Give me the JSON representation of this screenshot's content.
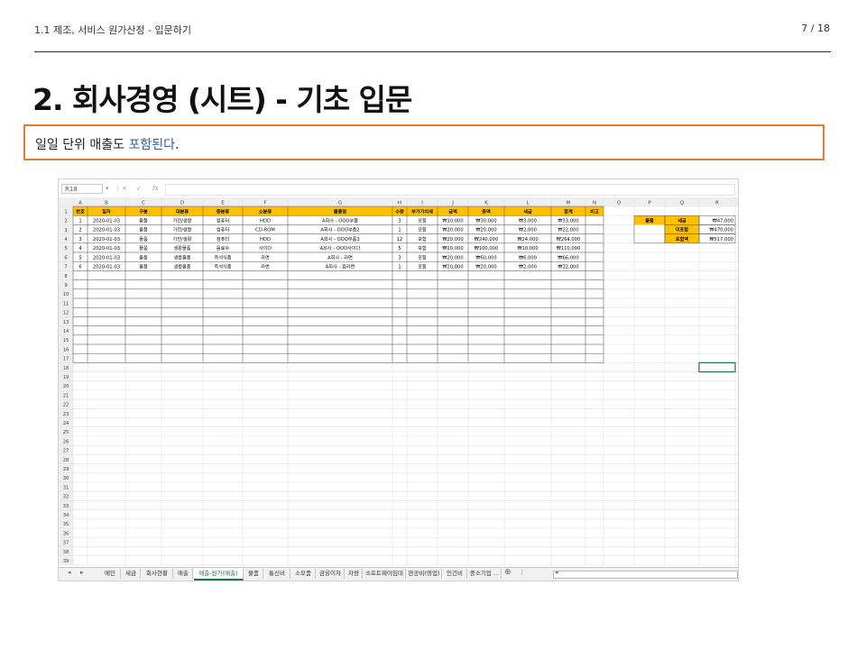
{
  "header": {
    "breadcrumb": "1.1 제조, 서비스 원가산정 - 입문하기",
    "page": "7 / 18"
  },
  "title": "2. 회사경영 (시트) - 기초 입문",
  "callout": {
    "text": "일일 단위 매출도 ",
    "highlight": "포함된다",
    "end": "."
  },
  "excel": {
    "name_box": "R18",
    "fx": "fx",
    "col_letters": [
      "A",
      "B",
      "C",
      "D",
      "E",
      "F",
      "G",
      "H",
      "I",
      "J",
      "K",
      "L",
      "M",
      "N",
      "O",
      "P",
      "Q",
      "R"
    ],
    "headers": [
      "번호",
      "일자",
      "구분",
      "대분류",
      "중분류",
      "소분류",
      "물품명",
      "수량",
      "부가가치세",
      "금액",
      "총액",
      "세금",
      "합계",
      "비고"
    ],
    "rows": [
      [
        "1",
        "2020-01-03",
        "물품",
        "가전/생활",
        "컴퓨터",
        "HDD",
        "A회사 - OOO부품",
        "3",
        "포함",
        "₩10,000",
        "₩30,000",
        "₩3,000",
        "₩33,000",
        ""
      ],
      [
        "2",
        "2020-01-03",
        "물품",
        "가전/생활",
        "컴퓨터",
        "CD-ROM",
        "A회사 - OOO부품2",
        "1",
        "포함",
        "₩20,000",
        "₩20,000",
        "₩2,000",
        "₩22,000",
        ""
      ],
      [
        "3",
        "2020-01-03",
        "물품",
        "가전/생활",
        "컴퓨터",
        "HDD",
        "A회사 - OOO부품3",
        "12",
        "포함",
        "₩20,000",
        "₩240,000",
        "₩24,000",
        "₩264,000",
        ""
      ],
      [
        "4",
        "2020-01-03",
        "물품",
        "생활물품",
        "음료수",
        "사이다",
        "A회사 - OOO사이다",
        "5",
        "포함",
        "₩20,000",
        "₩100,000",
        "₩10,000",
        "₩110,000",
        ""
      ],
      [
        "5",
        "2020-01-03",
        "물품",
        "생활물품",
        "즉석식품",
        "라면",
        "A회사 - 라면",
        "3",
        "포함",
        "₩20,000",
        "₩60,000",
        "₩6,000",
        "₩66,000",
        ""
      ],
      [
        "6",
        "2020-01-03",
        "물품",
        "생활물품",
        "즉석식품",
        "라면",
        "A회사 - 컵라면",
        "1",
        "포함",
        "₩20,000",
        "₩20,000",
        "₩2,000",
        "₩22,000",
        ""
      ]
    ],
    "summary": {
      "category": "물품",
      "items": [
        {
          "label": "세금",
          "value": "₩47,000"
        },
        {
          "label": "미포함",
          "value": "₩470,000"
        },
        {
          "label": "포함액",
          "value": "₩517,000"
        }
      ]
    },
    "row_count": 39,
    "sheet_tabs": [
      "메인",
      "세금",
      "회사현황",
      "매출",
      "매출-원가(매출)",
      "물품",
      "통신비",
      "소모품",
      "금융이자",
      "차량",
      "소프트웨어임대",
      "판공비(영업)",
      "인건비",
      "중소기업 ..."
    ],
    "active_tab": "매출-원가(매출)",
    "nav_prev": "◂",
    "nav_next": "▸",
    "add_sheet": "⊕",
    "more": "⋮",
    "scroll_left": "◂",
    "toolbar_icons": {
      "dropdown": "▾",
      "more": "⋮",
      "cancel": "×",
      "enter": "✓"
    },
    "colors": {
      "header_fill": "#FFC000",
      "summary_fill": "#FFC000",
      "selection": "#217346"
    }
  }
}
